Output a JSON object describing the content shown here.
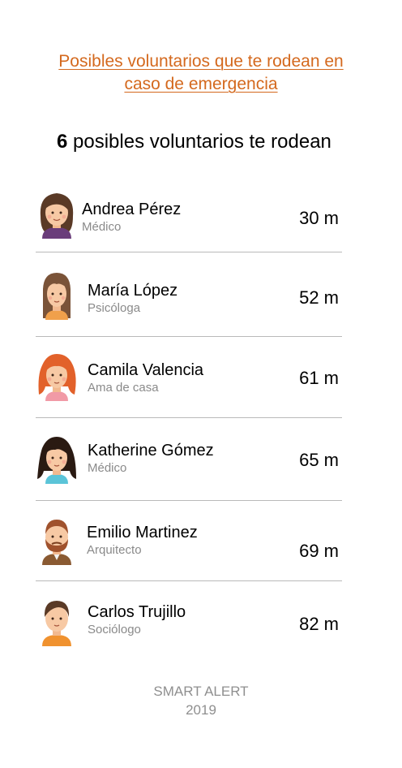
{
  "header": {
    "title_line1": "Posibles voluntarios que te rodean en",
    "title_line2": "caso de emergencia",
    "accent_color": "#d4691e"
  },
  "summary": {
    "count": "6",
    "text": "posibles voluntarios te rodean"
  },
  "volunteers": [
    {
      "name": "Andrea Pérez",
      "role": "Médico",
      "distance": "30 m",
      "avatar": "woman-brown-hair-icon"
    },
    {
      "name": "María López",
      "role": "Psicóloga",
      "distance": "52 m",
      "avatar": "woman-long-brown-hair-icon"
    },
    {
      "name": "Camila Valencia",
      "role": "Ama de casa",
      "distance": "61 m",
      "avatar": "woman-red-hair-icon"
    },
    {
      "name": "Katherine Gómez",
      "role": "Médico",
      "distance": "65 m",
      "avatar": "woman-black-hair-icon"
    },
    {
      "name": "Emilio Martinez",
      "role": "Arquitecto",
      "distance": "69 m",
      "avatar": "man-beard-icon"
    },
    {
      "name": "Carlos Trujillo",
      "role": "Sociólogo",
      "distance": "82 m",
      "avatar": "man-orange-shirt-icon"
    }
  ],
  "footer": {
    "brand": "SMART ALERT",
    "year": "2019"
  }
}
